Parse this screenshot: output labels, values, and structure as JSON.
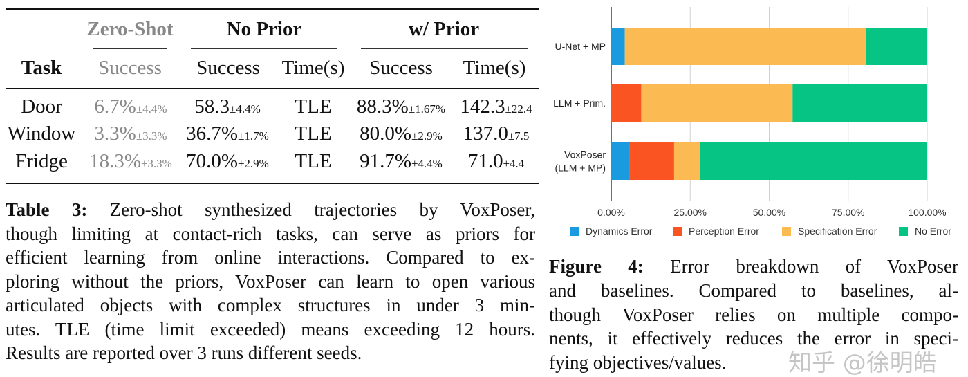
{
  "table": {
    "groups": {
      "zero_shot": "Zero-Shot",
      "no_prior": "No Prior",
      "w_prior": "w/ Prior"
    },
    "columns": {
      "task": "Task",
      "zs_success": "Success",
      "np_success": "Success",
      "np_time": "Time(s)",
      "wp_success": "Success",
      "wp_time": "Time(s)"
    },
    "rows": [
      {
        "task": "Door",
        "zs": "6.7%",
        "zs_pm": "±4.4%",
        "np": "58.3",
        "np_pm": "±4.4%",
        "np_time": "TLE",
        "wp": "88.3%",
        "wp_pm": "±1.67%",
        "wp_time": "142.3",
        "wp_time_pm": "±22.4"
      },
      {
        "task": "Window",
        "zs": "3.3%",
        "zs_pm": "±3.3%",
        "np": "36.7%",
        "np_pm": "±1.7%",
        "np_time": "TLE",
        "wp": "80.0%",
        "wp_pm": "±2.9%",
        "wp_time": "137.0",
        "wp_time_pm": "±7.5"
      },
      {
        "task": "Fridge",
        "zs": "18.3%",
        "zs_pm": "±3.3%",
        "np": "70.0%",
        "np_pm": "±2.9%",
        "np_time": "TLE",
        "wp": "91.7%",
        "wp_pm": "±4.4%",
        "wp_time": "71.0",
        "wp_time_pm": "±4.4"
      }
    ],
    "caption": {
      "label": "Table 3:",
      "lines": [
        " Zero-shot synthesized trajectories by VoxPoser,",
        "though limiting at contact-rich tasks, can serve as priors for",
        "efficient learning from online interactions. Compared to ex-",
        "ploring without the priors, VoxPoser can learn to open various",
        "articulated objects with complex structures in under 3 min-",
        "utes. TLE (time limit exceeded) means exceeding 12 hours.",
        "Results are reported over 3 runs different seeds."
      ]
    }
  },
  "chart_data": {
    "type": "bar",
    "orientation": "horizontal",
    "stacked": true,
    "categories": [
      "U-Net + MP",
      "LLM + Prim.",
      "VoxPoser (LLM + MP)"
    ],
    "category_lines": [
      [
        "U-Net + MP"
      ],
      [
        "LLM + Prim."
      ],
      [
        "VoxPoser",
        "(LLM + MP)"
      ]
    ],
    "series": [
      {
        "name": "Dynamics Error",
        "color": "#1a9be0",
        "values": [
          4.3,
          0,
          5.7
        ]
      },
      {
        "name": "Perception Error",
        "color": "#fb5423",
        "values": [
          0,
          9.5,
          14.2
        ]
      },
      {
        "name": "Specification Error",
        "color": "#fcba52",
        "values": [
          76.3,
          47.9,
          8.1
        ]
      },
      {
        "name": "No Error",
        "color": "#06c584",
        "values": [
          19.4,
          42.6,
          72.0
        ]
      }
    ],
    "xlim": [
      0,
      100
    ],
    "xticks": [
      "0.00%",
      "25.00%",
      "50.00%",
      "75.00%",
      "100.00%"
    ],
    "grid": true,
    "legend": "bottom",
    "title": "",
    "xlabel": "",
    "ylabel": ""
  },
  "figure_caption": {
    "label": "Figure 4:",
    "lines": [
      " Error breakdown of VoxPoser",
      "and baselines. Compared to baselines, al-",
      "though VoxPoser relies on multiple compo-",
      "nents, it effectively reduces the error in speci-",
      "fying objectives/values."
    ]
  },
  "watermark": "知乎 @徐明皓"
}
